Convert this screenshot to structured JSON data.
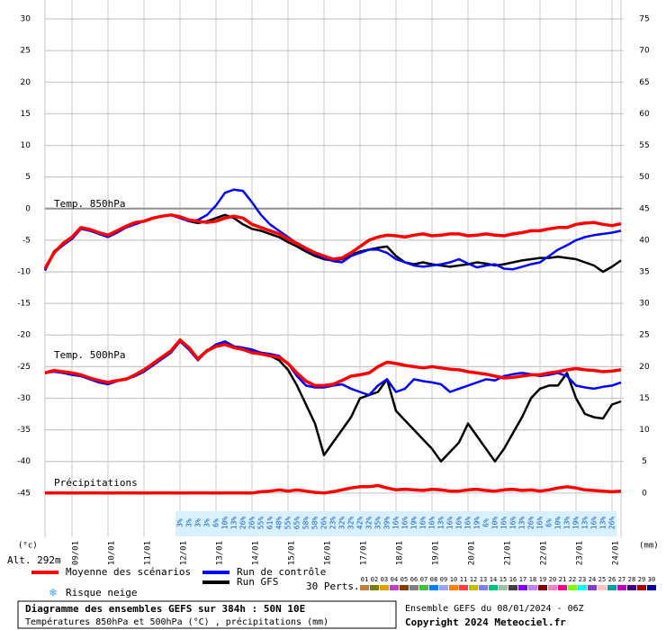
{
  "chart_data": {
    "type": "line",
    "title": "Diagramme des ensembles GEFS sur 384h : 50N 10E",
    "subtitle": "Températures 850hPa et 500hPa (°C) , précipitations (mm)",
    "run_info": "Ensemble GEFS du 08/01/2024 - 06Z",
    "copyright": "Copyright 2024 Meteociel.fr",
    "labels": {
      "t850": "Temp. 850hPa",
      "t500": "Temp. 500hPa",
      "precip": "Précipitations"
    },
    "ylabel": "(°c)",
    "y2label": "(mm)",
    "altitude": "Alt. 292m",
    "snow_label": "Risque neige",
    "members_label": "30 Perts.",
    "grid": true,
    "ylim": [
      -52,
      33
    ],
    "yticks": [
      30,
      25,
      20,
      15,
      10,
      5,
      0,
      -5,
      -10,
      -15,
      -20,
      -25,
      -30,
      -35,
      -40,
      -45
    ],
    "y2lim": [
      -7,
      78
    ],
    "y2ticks": [
      75,
      70,
      65,
      60,
      55,
      50,
      45,
      40,
      35,
      30,
      25,
      20,
      15,
      10,
      5,
      0
    ],
    "categories": [
      null,
      null,
      null,
      "09/01",
      null,
      null,
      null,
      "10/01",
      null,
      null,
      null,
      "11/01",
      null,
      null,
      null,
      "12/01",
      null,
      null,
      null,
      "13/01",
      null,
      null,
      null,
      "14/01",
      null,
      null,
      null,
      "15/01",
      null,
      null,
      null,
      "16/01",
      null,
      null,
      null,
      "17/01",
      null,
      null,
      null,
      "18/01",
      null,
      null,
      null,
      "19/01",
      null,
      null,
      null,
      "20/01",
      null,
      null,
      null,
      "21/01",
      null,
      null,
      null,
      "22/01",
      null,
      null,
      null,
      "23/01",
      null,
      null,
      null,
      "24/01",
      null
    ],
    "series": [
      {
        "name": "Moyenne des scénarios",
        "color": "#ff0000",
        "width": 3.5,
        "t850": [
          -9.5,
          -7,
          -5.5,
          -4.5,
          -3,
          -3.3,
          -3.8,
          -4.2,
          -3.5,
          -2.8,
          -2.2,
          -2,
          -1.5,
          -1.2,
          -1,
          -1.3,
          -1.8,
          -2,
          -2.2,
          -2,
          -1.5,
          -1.2,
          -1.5,
          -2.5,
          -3,
          -3.5,
          -4,
          -4.8,
          -5.5,
          -6.3,
          -7,
          -7.5,
          -8,
          -7.8,
          -7,
          -6,
          -5,
          -4.5,
          -4.2,
          -4.3,
          -4.5,
          -4.2,
          -4,
          -4.3,
          -4.2,
          -4,
          -4,
          -4.3,
          -4.2,
          -4,
          -4.2,
          -4.3,
          -4,
          -3.8,
          -3.5,
          -3.5,
          -3.2,
          -3,
          -3,
          -2.5,
          -2.3,
          -2.2,
          -2.5,
          -2.7,
          -2.4
        ],
        "t500": [
          -26,
          -25.6,
          -25.8,
          -26,
          -26.3,
          -26.8,
          -27.2,
          -27.5,
          -27.2,
          -27,
          -26.3,
          -25.5,
          -24.5,
          -23.5,
          -22.5,
          -20.8,
          -22,
          -23.8,
          -22.5,
          -21.8,
          -21.5,
          -22,
          -22.3,
          -22.8,
          -23,
          -23.3,
          -23.5,
          -24.5,
          -26,
          -27.3,
          -28,
          -28,
          -27.8,
          -27.2,
          -26.5,
          -26.3,
          -26,
          -25,
          -24.3,
          -24.5,
          -24.8,
          -25,
          -25.2,
          -25,
          -25.2,
          -25.4,
          -25.5,
          -25.8,
          -26,
          -26.2,
          -26.5,
          -26.8,
          -26.7,
          -26.5,
          -26.3,
          -26.3,
          -26,
          -25.8,
          -25.5,
          -25.3,
          -25.5,
          -25.6,
          -25.8,
          -25.7,
          -25.5
        ],
        "precip": [
          0,
          0,
          0,
          0,
          0,
          0,
          0,
          0,
          0,
          0,
          0,
          0,
          0,
          0,
          0,
          0,
          0,
          0,
          0,
          0,
          0,
          0,
          0,
          0,
          0.2,
          0.3,
          0.5,
          0.3,
          0.5,
          0.3,
          0.1,
          0,
          0.2,
          0.5,
          0.8,
          1,
          1,
          1.2,
          0.8,
          0.5,
          0.6,
          0.5,
          0.4,
          0.6,
          0.5,
          0.3,
          0.3,
          0.5,
          0.6,
          0.4,
          0.3,
          0.5,
          0.6,
          0.4,
          0.5,
          0.3,
          0.5,
          0.8,
          1,
          0.8,
          0.5,
          0.4,
          0.3,
          0.2,
          0.3
        ]
      },
      {
        "name": "Run de contrôle",
        "color": "#0000ff",
        "width": 2.5,
        "t850": [
          -9.8,
          -7,
          -5.8,
          -4.8,
          -3.2,
          -3.5,
          -4,
          -4.5,
          -3.8,
          -3,
          -2.5,
          -2,
          -1.5,
          -1.2,
          -1,
          -1.5,
          -2,
          -1.8,
          -1,
          0.5,
          2.5,
          3,
          2.8,
          1,
          -1,
          -2.5,
          -3.5,
          -4.5,
          -5.5,
          -6.5,
          -7.2,
          -7.8,
          -8.3,
          -8.5,
          -7.5,
          -7,
          -6.5,
          -6.5,
          -7,
          -8,
          -8.5,
          -9,
          -9.2,
          -9,
          -8.8,
          -8.5,
          -8,
          -8.7,
          -9.3,
          -9,
          -8.8,
          -9.5,
          -9.6,
          -9.2,
          -8.8,
          -8.5,
          -7.5,
          -6.5,
          -5.8,
          -5,
          -4.5,
          -4.2,
          -4,
          -3.8,
          -3.5
        ],
        "t500": [
          -26,
          -25.8,
          -26,
          -26.3,
          -26.5,
          -27,
          -27.5,
          -27.8,
          -27.3,
          -27,
          -26.5,
          -25.8,
          -24.8,
          -23.8,
          -22.8,
          -21,
          -22.3,
          -24,
          -22.5,
          -21.5,
          -21,
          -21.8,
          -22,
          -22.3,
          -22.8,
          -23,
          -23.3,
          -24.5,
          -26.5,
          -28,
          -28.3,
          -28.3,
          -28,
          -27.8,
          -28.5,
          -29,
          -29.5,
          -28,
          -27,
          -29,
          -28.5,
          -27,
          -27.3,
          -27.5,
          -27.8,
          -29,
          -28.5,
          -28,
          -27.5,
          -27,
          -27.2,
          -26.5,
          -26.2,
          -26,
          -26.2,
          -26.5,
          -26.3,
          -26,
          -26.5,
          -28,
          -28.3,
          -28.5,
          -28.2,
          -28,
          -27.5
        ]
      },
      {
        "name": "Run GFS",
        "color": "#000000",
        "width": 2.5,
        "t850": [
          -9.7,
          -6.8,
          -5.6,
          -4.6,
          -3,
          -3.4,
          -4,
          -4.4,
          -3.6,
          -2.9,
          -2.3,
          -2,
          -1.5,
          -1.2,
          -1,
          -1.4,
          -2,
          -2.3,
          -2,
          -1.5,
          -1,
          -1.5,
          -2.5,
          -3.2,
          -3.5,
          -4,
          -4.5,
          -5.3,
          -6,
          -6.8,
          -7.5,
          -8,
          -8.2,
          -8,
          -7.3,
          -6.8,
          -6.5,
          -6.2,
          -6,
          -7.5,
          -8.5,
          -8.8,
          -8.5,
          -8.8,
          -9,
          -9.2,
          -9,
          -8.8,
          -8.5,
          -8.7,
          -9,
          -8.8,
          -8.5,
          -8.2,
          -8,
          -7.8,
          -7.8,
          -7.6,
          -7.8,
          -8,
          -8.5,
          -9,
          -10,
          -9.2,
          -8.2
        ],
        "t500": [
          -26,
          -25.7,
          -25.9,
          -26.2,
          -26.4,
          -26.9,
          -27.3,
          -27.6,
          -27.2,
          -26.9,
          -26.4,
          -25.6,
          -24.6,
          -23.6,
          -22.6,
          -20.7,
          -22.2,
          -23.7,
          -22.4,
          -21.7,
          -21.3,
          -21.8,
          -22.2,
          -22.6,
          -23,
          -23.3,
          -24,
          -25.5,
          -28,
          -31,
          -34,
          -39,
          -37,
          -35,
          -33,
          -30,
          -29.5,
          -29,
          -27,
          -32,
          -33.5,
          -35,
          -36.5,
          -38,
          -40,
          -38.5,
          -37,
          -34,
          -36,
          -38,
          -40,
          -38,
          -35.5,
          -33,
          -30,
          -28.5,
          -28,
          -28,
          -26,
          -30,
          -32.5,
          -33,
          -33.2,
          -31,
          -30.5
        ]
      }
    ],
    "snow_risk": [
      "3%",
      "3%",
      "3%",
      "3%",
      "6%",
      "10%",
      "13%",
      "26%",
      "26%",
      "55%",
      "61%",
      "48%",
      "55%",
      "65%",
      "58%",
      "58%",
      "26%",
      "23%",
      "32%",
      "32%",
      "42%",
      "32%",
      "35%",
      "39%",
      "16%",
      "16%",
      "19%",
      "16%",
      "16%",
      "13%",
      "16%",
      "16%",
      "16%",
      "19%",
      "6%",
      "10%",
      "16%",
      "16%",
      "13%",
      "26%",
      "16%",
      "6%",
      "10%",
      "13%",
      "19%",
      "13%",
      "16%",
      "13%",
      "26%"
    ],
    "members": [
      {
        "label": "01",
        "color": "#c08040"
      },
      {
        "label": "02",
        "color": "#808000"
      },
      {
        "label": "03",
        "color": "#e0a000"
      },
      {
        "label": "04",
        "color": "#c040c0"
      },
      {
        "label": "05",
        "color": "#804000"
      },
      {
        "label": "06",
        "color": "#808080"
      },
      {
        "label": "07",
        "color": "#40c040"
      },
      {
        "label": "08",
        "color": "#0080ff"
      },
      {
        "label": "09",
        "color": "#a0a0ff"
      },
      {
        "label": "10",
        "color": "#ff8000"
      },
      {
        "label": "11",
        "color": "#ff4040"
      },
      {
        "label": "12",
        "color": "#c0c000"
      },
      {
        "label": "13",
        "color": "#8080ff"
      },
      {
        "label": "14",
        "color": "#00c080"
      },
      {
        "label": "15",
        "color": "#a0c0a0"
      },
      {
        "label": "16",
        "color": "#404040"
      },
      {
        "label": "17",
        "color": "#8000ff"
      },
      {
        "label": "18",
        "color": "#c080ff"
      },
      {
        "label": "19",
        "color": "#800000"
      },
      {
        "label": "20",
        "color": "#ff80c0"
      },
      {
        "label": "21",
        "color": "#ff0080"
      },
      {
        "label": "22",
        "color": "#80ff00"
      },
      {
        "label": "23",
        "color": "#00ffff"
      },
      {
        "label": "24",
        "color": "#8040c0"
      },
      {
        "label": "25",
        "color": "#ffc0c0"
      },
      {
        "label": "26",
        "color": "#00a0a0"
      },
      {
        "label": "27",
        "color": "#c000c0"
      },
      {
        "label": "28",
        "color": "#400080"
      },
      {
        "label": "29",
        "color": "#a00000"
      },
      {
        "label": "30",
        "color": "#0000a0"
      }
    ]
  }
}
